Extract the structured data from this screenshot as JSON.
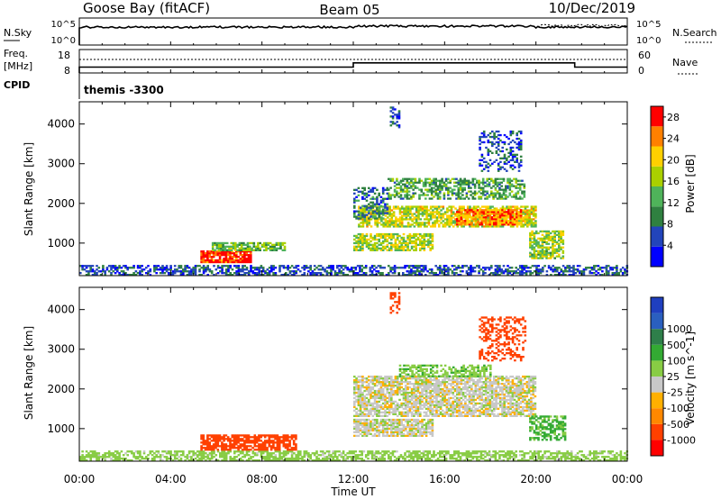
{
  "header": {
    "station": "Goose Bay (fitACF)",
    "beam": "Beam 05",
    "date": "10/Dec/2019"
  },
  "aux_panels": {
    "nsky": {
      "label": "N.Sky",
      "tick_top": "10^5",
      "tick_bottom": "10^0"
    },
    "nsearch": {
      "label": "N.Search",
      "tick_top": "10^5",
      "tick_bottom": "10^0"
    },
    "freq": {
      "label_line1": "Freq.",
      "label_line2": "[MHz]",
      "tick_top": "18",
      "tick_bottom": "8"
    },
    "nave": {
      "label": "Nave",
      "tick_top": "60",
      "tick_bottom": "0"
    },
    "cpid": {
      "label": "CPID",
      "value": "themis -3300"
    }
  },
  "colors": {
    "power_scale": [
      "#0000ff",
      "#2244bb",
      "#2f8040",
      "#4fb35a",
      "#aad000",
      "#ffd000",
      "#ff8000",
      "#ff0000"
    ],
    "velocity_scale": [
      "#ff0000",
      "#ff4000",
      "#ff8800",
      "#ffb000",
      "#c8c8c8",
      "#88cc44",
      "#33aa33",
      "#2e7f4a",
      "#2a5fbf",
      "#1f3fbf"
    ]
  },
  "chart_data": [
    {
      "type": "heatmap",
      "name_of_quantity": "power",
      "ylabel": "Slant Range [km]",
      "xlabel": "",
      "x_ticks": [
        "00:00",
        "04:00",
        "08:00",
        "12:00",
        "16:00",
        "20:00",
        "00:00"
      ],
      "y_ticks": [
        "1000",
        "2000",
        "3000",
        "4000"
      ],
      "ylim": [
        180,
        4560
      ],
      "x_hours": [
        0,
        24
      ],
      "colorbar": {
        "label": "Power [dB]",
        "ticks": [
          "4",
          "8",
          "12",
          "16",
          "20",
          "24",
          "28"
        ],
        "range": [
          0,
          30
        ]
      },
      "regions": [
        {
          "t": [
            0,
            24
          ],
          "r": [
            180,
            420
          ],
          "v": 6,
          "density": 0.55
        },
        {
          "t": [
            5.3,
            7.5
          ],
          "r": [
            500,
            800
          ],
          "v": 27,
          "density": 0.9
        },
        {
          "t": [
            5.8,
            9.0
          ],
          "r": [
            800,
            1000
          ],
          "v": 14,
          "density": 0.75
        },
        {
          "t": [
            12.0,
            15.5
          ],
          "r": [
            800,
            1250
          ],
          "v": 17,
          "density": 0.7
        },
        {
          "t": [
            12.2,
            20.0
          ],
          "r": [
            1400,
            1900
          ],
          "v": 18,
          "density": 0.7
        },
        {
          "t": [
            16.5,
            19.3
          ],
          "r": [
            1450,
            1850
          ],
          "v": 24,
          "density": 0.85
        },
        {
          "t": [
            13.5,
            19.5
          ],
          "r": [
            2100,
            2600
          ],
          "v": 12,
          "density": 0.55
        },
        {
          "t": [
            12.0,
            13.5
          ],
          "r": [
            1600,
            2400
          ],
          "v": 8,
          "density": 0.5
        },
        {
          "t": [
            17.5,
            19.3
          ],
          "r": [
            2800,
            3800
          ],
          "v": 6,
          "density": 0.35
        },
        {
          "t": [
            19.7,
            21.2
          ],
          "r": [
            600,
            1300
          ],
          "v": 16,
          "density": 0.7
        },
        {
          "t": [
            13.6,
            14.0
          ],
          "r": [
            3900,
            4400
          ],
          "v": 6,
          "density": 0.5
        }
      ]
    },
    {
      "type": "heatmap",
      "name_of_quantity": "velocity",
      "ylabel": "Slant Range [km]",
      "xlabel": "Time UT",
      "x_ticks": [
        "00:00",
        "04:00",
        "08:00",
        "12:00",
        "16:00",
        "20:00",
        "00:00"
      ],
      "y_ticks": [
        "1000",
        "2000",
        "3000",
        "4000"
      ],
      "ylim": [
        180,
        4560
      ],
      "x_hours": [
        0,
        24
      ],
      "colorbar": {
        "label": "Velocity [m s^-1]",
        "ticks": [
          "-1000",
          "-500",
          "-100",
          "-25",
          "25",
          "100",
          "500",
          "1000"
        ],
        "range": [
          -1000,
          1000
        ]
      },
      "regions": [
        {
          "t": [
            0,
            24
          ],
          "r": [
            180,
            420
          ],
          "v": 60,
          "density": 0.6
        },
        {
          "t": [
            5.3,
            9.5
          ],
          "r": [
            450,
            850
          ],
          "v": -150,
          "density": 0.75
        },
        {
          "t": [
            12.0,
            15.5
          ],
          "r": [
            800,
            1250
          ],
          "v": 0,
          "density": 0.8
        },
        {
          "t": [
            12.0,
            20.0
          ],
          "r": [
            1300,
            2300
          ],
          "v": 0,
          "density": 0.75
        },
        {
          "t": [
            14.0,
            18.0
          ],
          "r": [
            2300,
            2600
          ],
          "v": 80,
          "density": 0.55
        },
        {
          "t": [
            17.5,
            19.5
          ],
          "r": [
            2700,
            3800
          ],
          "v": -300,
          "density": 0.4
        },
        {
          "t": [
            19.7,
            21.3
          ],
          "r": [
            700,
            1300
          ],
          "v": 120,
          "density": 0.6
        },
        {
          "t": [
            13.6,
            14.0
          ],
          "r": [
            3900,
            4400
          ],
          "v": -200,
          "density": 0.5
        }
      ]
    }
  ],
  "aux_series": {
    "nsky_level": 0.55,
    "freq_steps": [
      {
        "t": [
          0,
          12
        ],
        "mhz": 10.5
      },
      {
        "t": [
          12,
          21.7
        ],
        "mhz": 12.3
      },
      {
        "t": [
          21.7,
          24
        ],
        "mhz": 10.5
      }
    ]
  }
}
